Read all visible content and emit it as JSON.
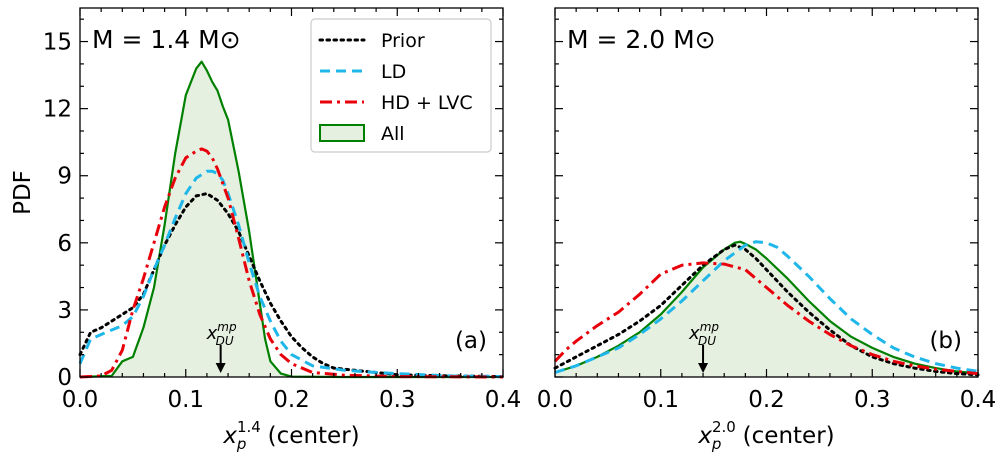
{
  "chart_data": [
    {
      "type": "line",
      "panel_label": "(a)",
      "annotation": "M = 1.4 M⊙",
      "ylabel": "PDF",
      "xlabel_main": "x",
      "xlabel_sub": "p",
      "xlabel_sup": "1.4",
      "xlabel_suffix": " (center)",
      "xlim": [
        0.0,
        0.4
      ],
      "ylim": [
        0,
        16.5
      ],
      "xticks": [
        "0.0",
        "0.1",
        "0.2",
        "0.3",
        "0.4"
      ],
      "yticks": [
        "0",
        "3",
        "6",
        "9",
        "12",
        "15"
      ],
      "marker": {
        "x": 0.133,
        "label_main": "x",
        "label_sub": "DU",
        "label_sup": "mp"
      },
      "series": [
        {
          "name": "All",
          "style": "filled",
          "color": "#008000",
          "fill": "#e6f0e0",
          "x": [
            0.0,
            0.03,
            0.04,
            0.05,
            0.06,
            0.07,
            0.08,
            0.09,
            0.1,
            0.11,
            0.115,
            0.12,
            0.125,
            0.13,
            0.135,
            0.14,
            0.15,
            0.16,
            0.17,
            0.175,
            0.18,
            0.19,
            0.2,
            0.25,
            0.4
          ],
          "y": [
            0,
            0.05,
            0.7,
            0.9,
            2.2,
            4.0,
            6.8,
            10.0,
            12.6,
            13.8,
            14.1,
            13.7,
            13.2,
            12.8,
            12.1,
            11.5,
            9.2,
            6.5,
            3.3,
            1.7,
            0.7,
            0.15,
            0.02,
            0,
            0
          ]
        },
        {
          "name": "Prior",
          "style": "dotted",
          "color": "#000000",
          "x": [
            0.0,
            0.01,
            0.02,
            0.03,
            0.04,
            0.05,
            0.06,
            0.07,
            0.08,
            0.09,
            0.1,
            0.11,
            0.12,
            0.13,
            0.14,
            0.15,
            0.16,
            0.17,
            0.18,
            0.19,
            0.2,
            0.21,
            0.22,
            0.23,
            0.24,
            0.25,
            0.26,
            0.28,
            0.3,
            0.35,
            0.4
          ],
          "y": [
            1.0,
            2.0,
            2.2,
            2.5,
            2.8,
            3.1,
            3.7,
            4.8,
            5.9,
            6.8,
            7.6,
            8.1,
            8.2,
            7.9,
            7.3,
            6.5,
            5.4,
            4.3,
            3.3,
            2.5,
            1.8,
            1.3,
            0.9,
            0.6,
            0.4,
            0.35,
            0.3,
            0.2,
            0.1,
            0.05,
            0.02
          ]
        },
        {
          "name": "LD",
          "style": "dashed",
          "color": "#1fb7ea",
          "x": [
            0.0,
            0.01,
            0.02,
            0.03,
            0.04,
            0.05,
            0.06,
            0.07,
            0.08,
            0.09,
            0.1,
            0.11,
            0.12,
            0.125,
            0.13,
            0.135,
            0.14,
            0.15,
            0.16,
            0.17,
            0.18,
            0.19,
            0.2,
            0.22,
            0.25,
            0.28,
            0.3,
            0.35,
            0.4
          ],
          "y": [
            0.6,
            1.7,
            1.9,
            2.1,
            2.3,
            2.7,
            3.6,
            4.8,
            5.9,
            7.1,
            8.2,
            8.9,
            9.2,
            9.2,
            9.1,
            8.8,
            8.2,
            6.8,
            5.1,
            3.6,
            2.5,
            1.6,
            1.0,
            0.5,
            0.3,
            0.2,
            0.15,
            0.05,
            0.02
          ]
        },
        {
          "name": "HD + LVC",
          "style": "dashdot",
          "color": "#e8000b",
          "x": [
            0.0,
            0.02,
            0.03,
            0.04,
            0.05,
            0.06,
            0.07,
            0.08,
            0.09,
            0.1,
            0.11,
            0.115,
            0.12,
            0.125,
            0.13,
            0.14,
            0.15,
            0.16,
            0.17,
            0.18,
            0.19,
            0.2,
            0.22,
            0.25,
            0.3,
            0.4
          ],
          "y": [
            0,
            0.05,
            0.3,
            1.2,
            3.0,
            4.4,
            6.0,
            7.6,
            8.9,
            9.8,
            10.1,
            10.2,
            10.1,
            9.8,
            9.3,
            8.0,
            6.2,
            4.3,
            2.8,
            1.7,
            1.0,
            0.6,
            0.2,
            0.08,
            0.02,
            0
          ]
        }
      ]
    },
    {
      "type": "line",
      "panel_label": "(b)",
      "annotation": "M = 2.0 M⊙",
      "xlabel_main": "x",
      "xlabel_sub": "p",
      "xlabel_sup": "2.0",
      "xlabel_suffix": " (center)",
      "xlim": [
        0.0,
        0.4
      ],
      "ylim": [
        0,
        16.5
      ],
      "xticks": [
        "0.0",
        "0.1",
        "0.2",
        "0.3",
        "0.4"
      ],
      "marker": {
        "x": 0.14,
        "label_main": "x",
        "label_sub": "DU",
        "label_sup": "mp"
      },
      "series": [
        {
          "name": "All",
          "style": "filled",
          "color": "#008000",
          "fill": "#e6f0e0",
          "x": [
            0.0,
            0.02,
            0.04,
            0.06,
            0.08,
            0.1,
            0.12,
            0.14,
            0.16,
            0.17,
            0.175,
            0.18,
            0.19,
            0.2,
            0.22,
            0.24,
            0.26,
            0.28,
            0.3,
            0.32,
            0.34,
            0.36,
            0.38,
            0.4
          ],
          "y": [
            0.2,
            0.5,
            0.9,
            1.4,
            2.0,
            2.8,
            3.8,
            4.9,
            5.7,
            6.0,
            6.05,
            5.95,
            5.7,
            5.3,
            4.4,
            3.4,
            2.5,
            1.8,
            1.3,
            0.9,
            0.6,
            0.4,
            0.25,
            0.15
          ]
        },
        {
          "name": "Prior",
          "style": "dotted",
          "color": "#000000",
          "x": [
            0.0,
            0.02,
            0.04,
            0.06,
            0.08,
            0.1,
            0.12,
            0.14,
            0.16,
            0.17,
            0.18,
            0.19,
            0.2,
            0.22,
            0.24,
            0.26,
            0.28,
            0.3,
            0.32,
            0.34,
            0.36,
            0.38,
            0.4
          ],
          "y": [
            0.4,
            0.9,
            1.4,
            1.9,
            2.5,
            3.2,
            4.1,
            5.0,
            5.7,
            5.9,
            5.7,
            5.3,
            4.8,
            3.8,
            2.9,
            2.1,
            1.4,
            0.9,
            0.6,
            0.4,
            0.25,
            0.15,
            0.1
          ]
        },
        {
          "name": "LD",
          "style": "dashed",
          "color": "#1fb7ea",
          "x": [
            0.0,
            0.02,
            0.04,
            0.06,
            0.08,
            0.1,
            0.12,
            0.14,
            0.16,
            0.18,
            0.19,
            0.2,
            0.21,
            0.22,
            0.24,
            0.26,
            0.28,
            0.3,
            0.32,
            0.34,
            0.36,
            0.38,
            0.4
          ],
          "y": [
            0.2,
            0.5,
            0.9,
            1.3,
            1.9,
            2.6,
            3.4,
            4.3,
            5.2,
            5.9,
            6.05,
            6.0,
            5.8,
            5.4,
            4.5,
            3.5,
            2.6,
            1.9,
            1.3,
            0.9,
            0.6,
            0.4,
            0.25
          ]
        },
        {
          "name": "HD + LVC",
          "style": "dashdot",
          "color": "#e8000b",
          "x": [
            0.0,
            0.01,
            0.02,
            0.04,
            0.06,
            0.08,
            0.1,
            0.12,
            0.14,
            0.16,
            0.18,
            0.2,
            0.22,
            0.24,
            0.26,
            0.28,
            0.3,
            0.32,
            0.34,
            0.36,
            0.38,
            0.4
          ],
          "y": [
            0.7,
            1.2,
            1.6,
            2.3,
            2.9,
            3.7,
            4.6,
            5.0,
            5.1,
            5.05,
            4.8,
            4.0,
            3.2,
            2.5,
            1.9,
            1.4,
            1.0,
            0.7,
            0.5,
            0.35,
            0.25,
            0.15
          ]
        }
      ]
    }
  ]
}
